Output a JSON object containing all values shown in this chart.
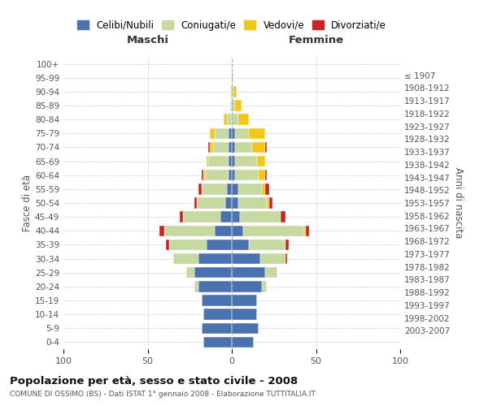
{
  "age_groups": [
    "0-4",
    "5-9",
    "10-14",
    "15-19",
    "20-24",
    "25-29",
    "30-34",
    "35-39",
    "40-44",
    "45-49",
    "50-54",
    "55-59",
    "60-64",
    "65-69",
    "70-74",
    "75-79",
    "80-84",
    "85-89",
    "90-94",
    "95-99",
    "100+"
  ],
  "birth_years": [
    "2003-2007",
    "1998-2002",
    "1993-1997",
    "1988-1992",
    "1983-1987",
    "1978-1982",
    "1973-1977",
    "1968-1972",
    "1963-1967",
    "1958-1962",
    "1953-1957",
    "1948-1952",
    "1943-1947",
    "1938-1942",
    "1933-1937",
    "1928-1932",
    "1923-1927",
    "1918-1922",
    "1913-1917",
    "1908-1912",
    "≤ 1907"
  ],
  "maschi": {
    "celibi": [
      17,
      18,
      17,
      18,
      20,
      22,
      20,
      15,
      10,
      7,
      4,
      3,
      2,
      2,
      2,
      2,
      0,
      0,
      0,
      0,
      0
    ],
    "coniugati": [
      0,
      0,
      0,
      0,
      2,
      5,
      15,
      22,
      30,
      22,
      17,
      15,
      14,
      12,
      9,
      8,
      3,
      1,
      1,
      0,
      0
    ],
    "vedovi": [
      0,
      0,
      0,
      0,
      0,
      0,
      0,
      0,
      0,
      0,
      0,
      0,
      1,
      1,
      2,
      3,
      2,
      0,
      0,
      0,
      0
    ],
    "divorziati": [
      0,
      0,
      0,
      0,
      0,
      0,
      0,
      2,
      3,
      2,
      1,
      2,
      1,
      0,
      1,
      0,
      0,
      0,
      0,
      0,
      0
    ]
  },
  "femmine": {
    "nubili": [
      13,
      16,
      15,
      15,
      18,
      20,
      17,
      10,
      7,
      5,
      4,
      4,
      2,
      2,
      2,
      2,
      0,
      0,
      0,
      0,
      0
    ],
    "coniugate": [
      0,
      0,
      0,
      0,
      3,
      7,
      15,
      22,
      36,
      24,
      17,
      14,
      14,
      13,
      10,
      8,
      4,
      2,
      1,
      1,
      0
    ],
    "vedove": [
      0,
      0,
      0,
      0,
      0,
      0,
      0,
      0,
      1,
      0,
      1,
      2,
      4,
      5,
      8,
      10,
      6,
      4,
      2,
      0,
      0
    ],
    "divorziate": [
      0,
      0,
      0,
      0,
      0,
      0,
      1,
      2,
      2,
      3,
      2,
      2,
      1,
      0,
      1,
      0,
      0,
      0,
      0,
      0,
      0
    ]
  },
  "colors": {
    "celibi_nubili": "#4a72b0",
    "coniugati": "#c5d9a0",
    "vedovi": "#f5c518",
    "divorziati": "#cc2222"
  },
  "xlim": 100,
  "title": "Popolazione per età, sesso e stato civile - 2008",
  "subtitle": "COMUNE DI OSSIMO (BS) - Dati ISTAT 1° gennaio 2008 - Elaborazione TUTTITALIA.IT",
  "ylabel_left": "Fasce di età",
  "ylabel_right": "Anni di nascita",
  "xlabel_left": "Maschi",
  "xlabel_right": "Femmine",
  "background_color": "#ffffff",
  "grid_color": "#cccccc"
}
